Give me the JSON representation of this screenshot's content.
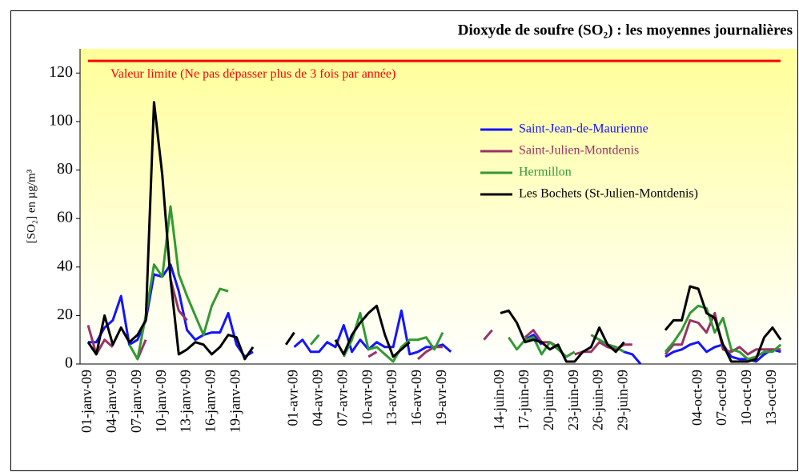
{
  "chart_data": {
    "type": "line",
    "title": "Dioxyde de soufre (SO₂) : les moyennes journalières",
    "ylabel": "[SO₂] en µg/m³",
    "ylim": [
      0,
      130
    ],
    "yticks": [
      0,
      20,
      40,
      60,
      80,
      100,
      120
    ],
    "grid": false,
    "legend": "upper right",
    "limit": {
      "value": 125,
      "label": "Valeur limite (Ne pas dépasser plus de 3 fois par année)",
      "color": "#ff0000"
    },
    "categories": [
      "01-janv-09",
      null,
      null,
      "04-janv-09",
      null,
      null,
      "07-janv-09",
      null,
      null,
      "10-janv-09",
      null,
      null,
      "13-janv-09",
      null,
      null,
      "16-janv-09",
      null,
      null,
      "19-janv-09",
      null,
      null,
      null,
      null,
      null,
      null,
      "01-avr-09",
      null,
      null,
      "04-avr-09",
      null,
      null,
      "07-avr-09",
      null,
      null,
      "10-avr-09",
      null,
      null,
      "13-avr-09",
      null,
      null,
      "16-avr-09",
      null,
      null,
      "19-avr-09",
      null,
      null,
      null,
      null,
      null,
      null,
      "14-juin-09",
      null,
      null,
      "17-juin-09",
      null,
      null,
      "20-juin-09",
      null,
      null,
      "23-juin-09",
      null,
      null,
      "26-juin-09",
      null,
      null,
      "29-juin-09",
      null,
      null,
      null,
      null,
      null,
      null,
      null,
      null,
      "04-oct-09",
      null,
      null,
      "07-oct-09",
      null,
      null,
      "10-oct-09",
      null,
      null,
      "13-oct-09",
      null
    ],
    "series": [
      {
        "name": "Saint-Jean-de-Maurienne",
        "color": "#1414ff",
        "values": [
          9,
          9,
          15,
          18,
          28,
          8,
          10,
          18,
          37,
          36,
          41,
          30,
          14,
          10,
          12,
          13,
          13,
          21,
          8,
          3,
          5,
          null,
          null,
          null,
          null,
          7,
          10,
          5,
          5,
          9,
          7,
          16,
          5,
          10,
          6,
          9,
          7,
          7,
          22,
          4,
          5,
          7,
          7,
          8,
          5,
          null,
          null,
          null,
          null,
          null,
          null,
          null,
          null,
          10,
          12,
          8,
          null,
          null,
          null,
          null,
          null,
          null,
          null,
          8,
          7,
          5,
          4,
          0,
          null,
          null,
          3,
          5,
          6,
          8,
          9,
          5,
          7,
          8,
          3,
          2,
          2,
          1,
          4,
          6,
          5
        ]
      },
      {
        "name": "Saint-Julien-Montdenis",
        "color": "#993366",
        "values": [
          16,
          4,
          10,
          7,
          null,
          null,
          2,
          10,
          null,
          null,
          35,
          22,
          18,
          null,
          null,
          null,
          null,
          null,
          null,
          null,
          null,
          null,
          null,
          null,
          null,
          null,
          null,
          null,
          null,
          null,
          null,
          null,
          null,
          null,
          3,
          5,
          null,
          null,
          null,
          null,
          2,
          5,
          7,
          7,
          null,
          null,
          null,
          null,
          10,
          14,
          null,
          null,
          null,
          11,
          14,
          9,
          9,
          7,
          null,
          4,
          5,
          5,
          9,
          7,
          6,
          8,
          8,
          null,
          null,
          null,
          4,
          8,
          8,
          18,
          17,
          13,
          21,
          6,
          5,
          7,
          4,
          6,
          6,
          6,
          6
        ]
      },
      {
        "name": "Hermillon",
        "color": "#339933",
        "values": [
          null,
          null,
          null,
          null,
          null,
          8,
          2,
          20,
          41,
          36,
          65,
          37,
          28,
          20,
          12,
          24,
          31,
          30,
          null,
          null,
          null,
          null,
          null,
          null,
          null,
          null,
          null,
          8,
          12,
          null,
          null,
          3,
          10,
          21,
          6,
          7,
          4,
          1,
          7,
          10,
          10,
          11,
          6,
          13,
          null,
          null,
          null,
          null,
          null,
          null,
          null,
          11,
          6,
          10,
          11,
          4,
          9,
          6,
          3,
          5,
          null,
          12,
          10,
          8,
          7,
          5,
          null,
          null,
          null,
          null,
          5,
          9,
          14,
          21,
          24,
          23,
          13,
          19,
          6,
          5,
          2,
          3,
          5,
          5,
          8
        ]
      },
      {
        "name": "Les Bochets (St-Julien-Montdenis)",
        "color": "#000000",
        "values": [
          9,
          4,
          20,
          8,
          15,
          9,
          12,
          18,
          108,
          78,
          35,
          4,
          6,
          9,
          8,
          4,
          7,
          12,
          11,
          2,
          7,
          null,
          null,
          null,
          8,
          13,
          null,
          null,
          null,
          null,
          10,
          4,
          12,
          17,
          21,
          24,
          12,
          3,
          6,
          9,
          null,
          null,
          null,
          null,
          null,
          null,
          null,
          null,
          null,
          null,
          21,
          22,
          17,
          9,
          10,
          9,
          6,
          8,
          1,
          1,
          5,
          7,
          15,
          8,
          5,
          9,
          null,
          null,
          null,
          null,
          14,
          18,
          18,
          32,
          31,
          21,
          19,
          8,
          1,
          1,
          1,
          2,
          11,
          15,
          10
        ]
      }
    ]
  }
}
